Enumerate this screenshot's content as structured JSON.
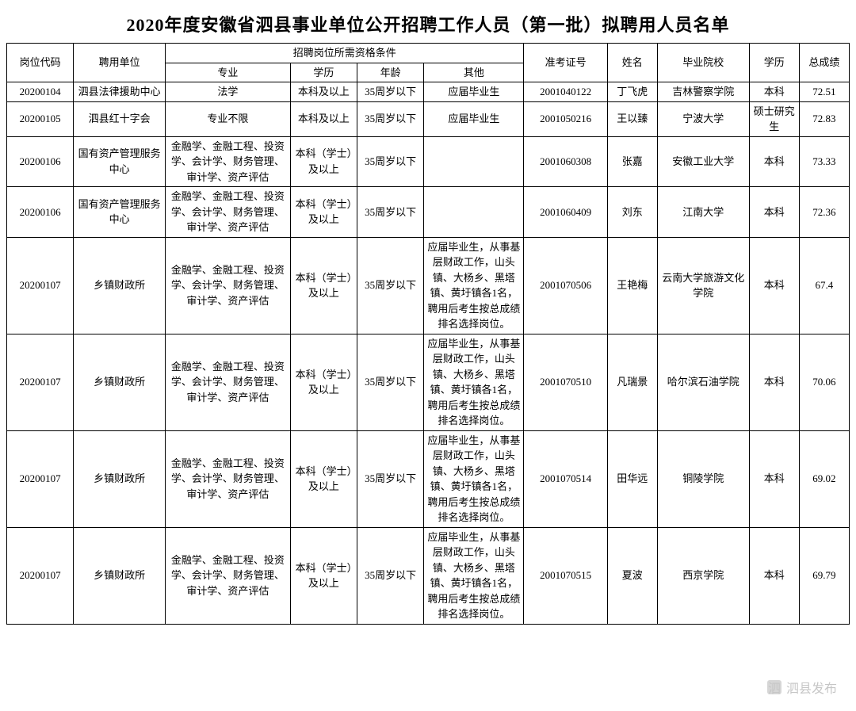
{
  "title": "2020年度安徽省泗县事业单位公开招聘工作人员（第一批）拟聘用人员名单",
  "headers": {
    "code": "岗位代码",
    "unit": "聘用单位",
    "qual_group": "招聘岗位所需资格条件",
    "major": "专业",
    "edu": "学历",
    "age": "年龄",
    "other": "其他",
    "ticket": "准考证号",
    "name": "姓名",
    "school": "毕业院校",
    "degree": "学历",
    "score": "总成绩"
  },
  "rows": [
    {
      "code": "20200104",
      "unit": "泗县法律援助中心",
      "major": "法学",
      "edu": "本科及以上",
      "age": "35周岁以下",
      "other": "应届毕业生",
      "ticket": "2001040122",
      "name": "丁飞虎",
      "school": "吉林警察学院",
      "degree": "本科",
      "score": "72.51"
    },
    {
      "code": "20200105",
      "unit": "泗县红十字会",
      "major": "专业不限",
      "edu": "本科及以上",
      "age": "35周岁以下",
      "other": "应届毕业生",
      "ticket": "2001050216",
      "name": "王以臻",
      "school": "宁波大学",
      "degree": "硕士研究生",
      "score": "72.83"
    },
    {
      "code": "20200106",
      "unit": "国有资产管理服务中心",
      "major": "金融学、金融工程、投资学、会计学、财务管理、审计学、资产评估",
      "edu": "本科（学士）及以上",
      "age": "35周岁以下",
      "other": "",
      "ticket": "2001060308",
      "name": "张嘉",
      "school": "安徽工业大学",
      "degree": "本科",
      "score": "73.33"
    },
    {
      "code": "20200106",
      "unit": "国有资产管理服务中心",
      "major": "金融学、金融工程、投资学、会计学、财务管理、审计学、资产评估",
      "edu": "本科（学士）及以上",
      "age": "35周岁以下",
      "other": "",
      "ticket": "2001060409",
      "name": "刘东",
      "school": "江南大学",
      "degree": "本科",
      "score": "72.36"
    },
    {
      "code": "20200107",
      "unit": "乡镇财政所",
      "major": "金融学、金融工程、投资学、会计学、财务管理、审计学、资产评估",
      "edu": "本科（学士）及以上",
      "age": "35周岁以下",
      "other": "应届毕业生，从事基层财政工作，山头镇、大杨乡、黑塔镇、黄圩镇各1名，聘用后考生按总成绩排名选择岗位。",
      "ticket": "2001070506",
      "name": "王艳梅",
      "school": "云南大学旅游文化学院",
      "degree": "本科",
      "score": "67.4"
    },
    {
      "code": "20200107",
      "unit": "乡镇财政所",
      "major": "金融学、金融工程、投资学、会计学、财务管理、审计学、资产评估",
      "edu": "本科（学士）及以上",
      "age": "35周岁以下",
      "other": "应届毕业生，从事基层财政工作，山头镇、大杨乡、黑塔镇、黄圩镇各1名，聘用后考生按总成绩排名选择岗位。",
      "ticket": "2001070510",
      "name": "凡瑞景",
      "school": "哈尔滨石油学院",
      "degree": "本科",
      "score": "70.06"
    },
    {
      "code": "20200107",
      "unit": "乡镇财政所",
      "major": "金融学、金融工程、投资学、会计学、财务管理、审计学、资产评估",
      "edu": "本科（学士）及以上",
      "age": "35周岁以下",
      "other": "应届毕业生，从事基层财政工作，山头镇、大杨乡、黑塔镇、黄圩镇各1名，聘用后考生按总成绩排名选择岗位。",
      "ticket": "2001070514",
      "name": "田华远",
      "school": "铜陵学院",
      "degree": "本科",
      "score": "69.02"
    },
    {
      "code": "20200107",
      "unit": "乡镇财政所",
      "major": "金融学、金融工程、投资学、会计学、财务管理、审计学、资产评估",
      "edu": "本科（学士）及以上",
      "age": "35周岁以下",
      "other": "应届毕业生，从事基层财政工作，山头镇、大杨乡、黑塔镇、黄圩镇各1名，聘用后考生按总成绩排名选择岗位。",
      "ticket": "2001070515",
      "name": "夏波",
      "school": "西京学院",
      "degree": "本科",
      "score": "69.79"
    }
  ],
  "watermark": {
    "icon": "泗",
    "text": "泗县发布"
  },
  "style": {
    "border_color": "#000000",
    "background": "#ffffff",
    "title_fontsize": 22,
    "cell_fontsize": 13,
    "font_family": "SimSun"
  }
}
